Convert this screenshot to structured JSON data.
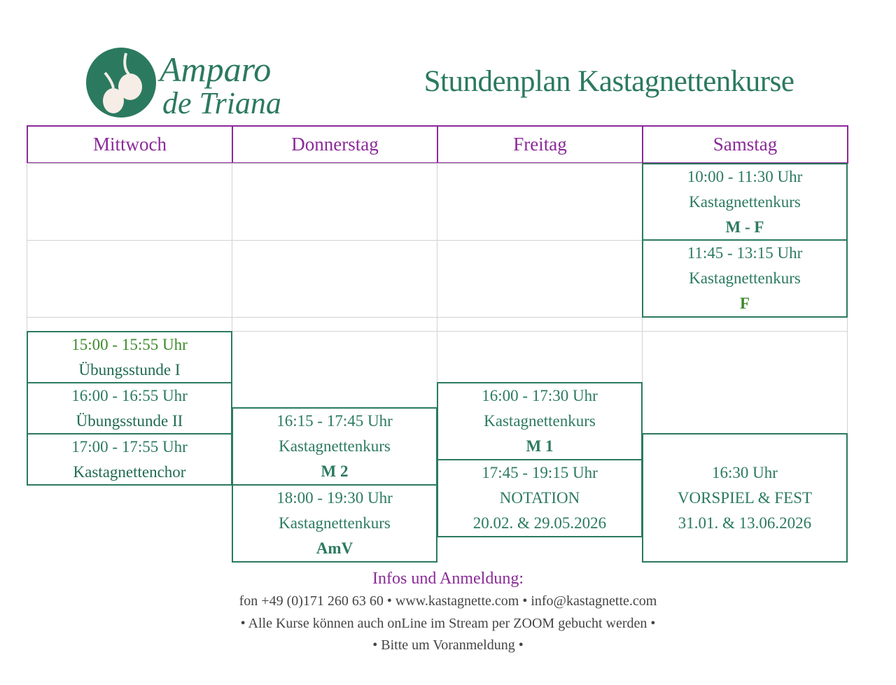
{
  "logo": {
    "text_line1": "Amparo",
    "text_line2": "de Triana",
    "icon": "castanets-icon",
    "color": "#2b7a5f"
  },
  "title": "Stundenplan Kastagnettenkurse",
  "days": [
    "Mittwoch",
    "Donnerstag",
    "Freitag",
    "Samstag"
  ],
  "classes": {
    "sa1": {
      "time": "10:00 - 11:30 Uhr",
      "name": "Kastagnettenkurs",
      "level": "M - F"
    },
    "sa2": {
      "time": "11:45 - 13:15 Uhr",
      "name": "Kastagnettenkurs",
      "level": "F"
    },
    "mi1": {
      "time": "15:00 - 15:55 Uhr",
      "name": "Übungsstunde I"
    },
    "mi2": {
      "time": "16:00 - 16:55 Uhr",
      "name": "Übungsstunde II"
    },
    "mi3": {
      "time": "17:00 - 17:55 Uhr",
      "name": "Kastagnettenchor"
    },
    "do1": {
      "time": "16:15 - 17:45 Uhr",
      "name": "Kastagnettenkurs",
      "level": "M 2"
    },
    "do2": {
      "time": "18:00 - 19:30 Uhr",
      "name": "Kastagnettenkurs",
      "level": "AmV"
    },
    "fr1": {
      "time": "16:00 - 17:30 Uhr",
      "name": "Kastagnettenkurs",
      "level": "M 1"
    },
    "fr2": {
      "time": "17:45 - 19:15 Uhr",
      "name": "NOTATION",
      "dates": "20.02. & 29.05.2026"
    },
    "sa3": {
      "time": "16:30 Uhr",
      "name": "VORSPIEL & FEST",
      "dates": "31.01. & 13.06.2026"
    }
  },
  "footer": {
    "heading": "Infos und Anmeldung:",
    "contact": "fon +49 (0)171 260 63 60 • www.kastagnette.com • info@kastagnette.com",
    "note": "• Alle Kurse können auch onLine im Stream per ZOOM gebucht werden •",
    "request": "• Bitte um Voranmeldung •"
  },
  "colors": {
    "green": "#2b7a5f",
    "purple": "#8a2a98",
    "grid": "#d2d2d2"
  }
}
